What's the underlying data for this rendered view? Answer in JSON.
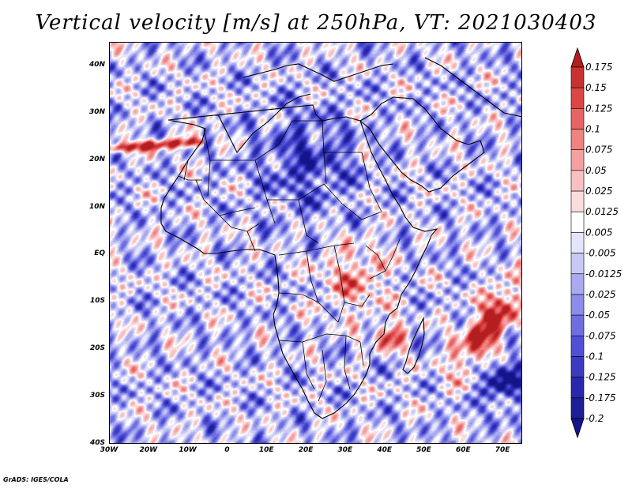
{
  "title": "Vertical velocity [m/s] at 250hPa, VT: 2021030403",
  "credit": "GrADS: IGES/COLA",
  "map": {
    "lon_range": [
      -30,
      75
    ],
    "lat_range": [
      -40,
      45
    ],
    "lat_ticks": [
      {
        "value": 40,
        "label": "40N"
      },
      {
        "value": 30,
        "label": "30N"
      },
      {
        "value": 20,
        "label": "20N"
      },
      {
        "value": 10,
        "label": "10N"
      },
      {
        "value": 0,
        "label": "EQ"
      },
      {
        "value": -10,
        "label": "10S"
      },
      {
        "value": -20,
        "label": "20S"
      },
      {
        "value": -30,
        "label": "30S"
      },
      {
        "value": -40,
        "label": "40S"
      }
    ],
    "lon_ticks": [
      {
        "value": -30,
        "label": "30W"
      },
      {
        "value": -20,
        "label": "20W"
      },
      {
        "value": -10,
        "label": "10W"
      },
      {
        "value": 0,
        "label": "0"
      },
      {
        "value": 10,
        "label": "10E"
      },
      {
        "value": 20,
        "label": "20E"
      },
      {
        "value": 30,
        "label": "30E"
      },
      {
        "value": 40,
        "label": "40E"
      },
      {
        "value": 50,
        "label": "50E"
      },
      {
        "value": 60,
        "label": "60E"
      },
      {
        "value": 70,
        "label": "70E"
      }
    ]
  },
  "colorbar": {
    "labels": [
      "0.175",
      "0.15",
      "0.125",
      "0.1",
      "0.075",
      "0.05",
      "0.025",
      "0.0125",
      "0.005",
      "-0.005",
      "-0.0125",
      "-0.025",
      "-0.05",
      "-0.075",
      "-0.1",
      "-0.125",
      "-0.175",
      "-0.2"
    ],
    "colors": [
      "#b41e1e",
      "#c83232",
      "#dc4646",
      "#e86464",
      "#f08282",
      "#f5a0a0",
      "#f8c0c0",
      "#fbdcdc",
      "#ffffff",
      "#e4e4fa",
      "#c8c8f5",
      "#aaaaf0",
      "#8c8ceb",
      "#6e6ee1",
      "#5050d7",
      "#3c3cc3",
      "#2828af",
      "#1e1e96",
      "#14148a"
    ]
  }
}
